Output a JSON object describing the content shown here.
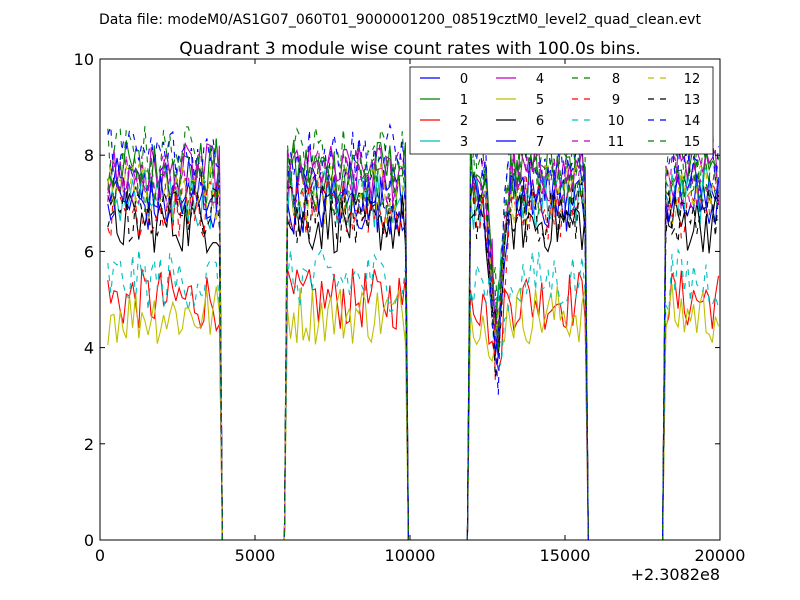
{
  "chart_data": {
    "type": "line",
    "suptitle": "Data file: modeM0/AS1G07_060T01_9000001200_08519cztM0_level2_quad_clean.evt",
    "title": "Quadrant 3 module wise count rates with 100.0s bins.",
    "xlabel": "",
    "ylabel": "",
    "x_offset_label": "+2.3082e8",
    "xlim": [
      0,
      20000
    ],
    "ylim": [
      0,
      10
    ],
    "xticks": [
      "0",
      "5000",
      "10000",
      "15000",
      "20000"
    ],
    "yticks": [
      "0",
      "2",
      "4",
      "6",
      "8",
      "10"
    ],
    "bin_size": 100,
    "on_intervals": [
      [
        250,
        3900
      ],
      [
        6000,
        9900
      ],
      [
        11900,
        15650
      ],
      [
        18200,
        19950
      ]
    ],
    "dip": {
      "x": 12800,
      "value": 3.8
    },
    "legend_position": "top-right",
    "legend_columns": 4,
    "series": [
      {
        "name": "0",
        "color": "#0000ff",
        "style": "solid",
        "mean_rate": 7.3
      },
      {
        "name": "1",
        "color": "#008000",
        "style": "solid",
        "mean_rate": 7.7
      },
      {
        "name": "2",
        "color": "#ff0000",
        "style": "solid",
        "mean_rate": 5.0
      },
      {
        "name": "3",
        "color": "#00bfbf",
        "style": "solid",
        "mean_rate": 7.1
      },
      {
        "name": "4",
        "color": "#bf00bf",
        "style": "solid",
        "mean_rate": 7.6
      },
      {
        "name": "5",
        "color": "#bfbf00",
        "style": "solid",
        "mean_rate": 4.7
      },
      {
        "name": "6",
        "color": "#000000",
        "style": "solid",
        "mean_rate": 6.6
      },
      {
        "name": "7",
        "color": "#0000ff",
        "style": "solid",
        "mean_rate": 7.0
      },
      {
        "name": "8",
        "color": "#008000",
        "style": "dashed",
        "mean_rate": 8.0
      },
      {
        "name": "9",
        "color": "#ff0000",
        "style": "dashed",
        "mean_rate": 6.9
      },
      {
        "name": "10",
        "color": "#00bfbf",
        "style": "dashed",
        "mean_rate": 5.4
      },
      {
        "name": "11",
        "color": "#bf00bf",
        "style": "dashed",
        "mean_rate": 7.5
      },
      {
        "name": "12",
        "color": "#bfbf00",
        "style": "dashed",
        "mean_rate": 7.2
      },
      {
        "name": "13",
        "color": "#000000",
        "style": "dashed",
        "mean_rate": 6.8
      },
      {
        "name": "14",
        "color": "#0000ff",
        "style": "dashed",
        "mean_rate": 8.0
      },
      {
        "name": "15",
        "color": "#008000",
        "style": "dashed",
        "mean_rate": 7.4
      }
    ]
  }
}
